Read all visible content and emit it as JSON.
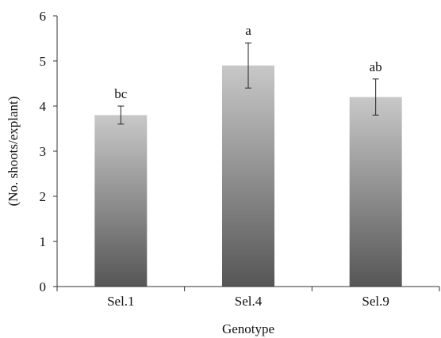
{
  "chart_data": {
    "type": "bar",
    "title": "",
    "xlabel": "Genotype",
    "ylabel": "(No. shoots/explant)",
    "categories": [
      "Sel.1",
      "Sel.4",
      "Sel.9"
    ],
    "values": [
      3.8,
      4.9,
      4.2
    ],
    "error_low": [
      3.6,
      4.4,
      3.8
    ],
    "error_high": [
      4.0,
      5.4,
      4.6
    ],
    "significance_labels": [
      "bc",
      "a",
      "ab"
    ],
    "ylim": [
      0,
      6
    ],
    "yticks": [
      "0",
      "1",
      "2",
      "3",
      "4",
      "5",
      "6"
    ],
    "grid": false,
    "legend": "none",
    "bar_gradient": {
      "top": "#c8c8c8",
      "bottom": "#565656"
    }
  }
}
